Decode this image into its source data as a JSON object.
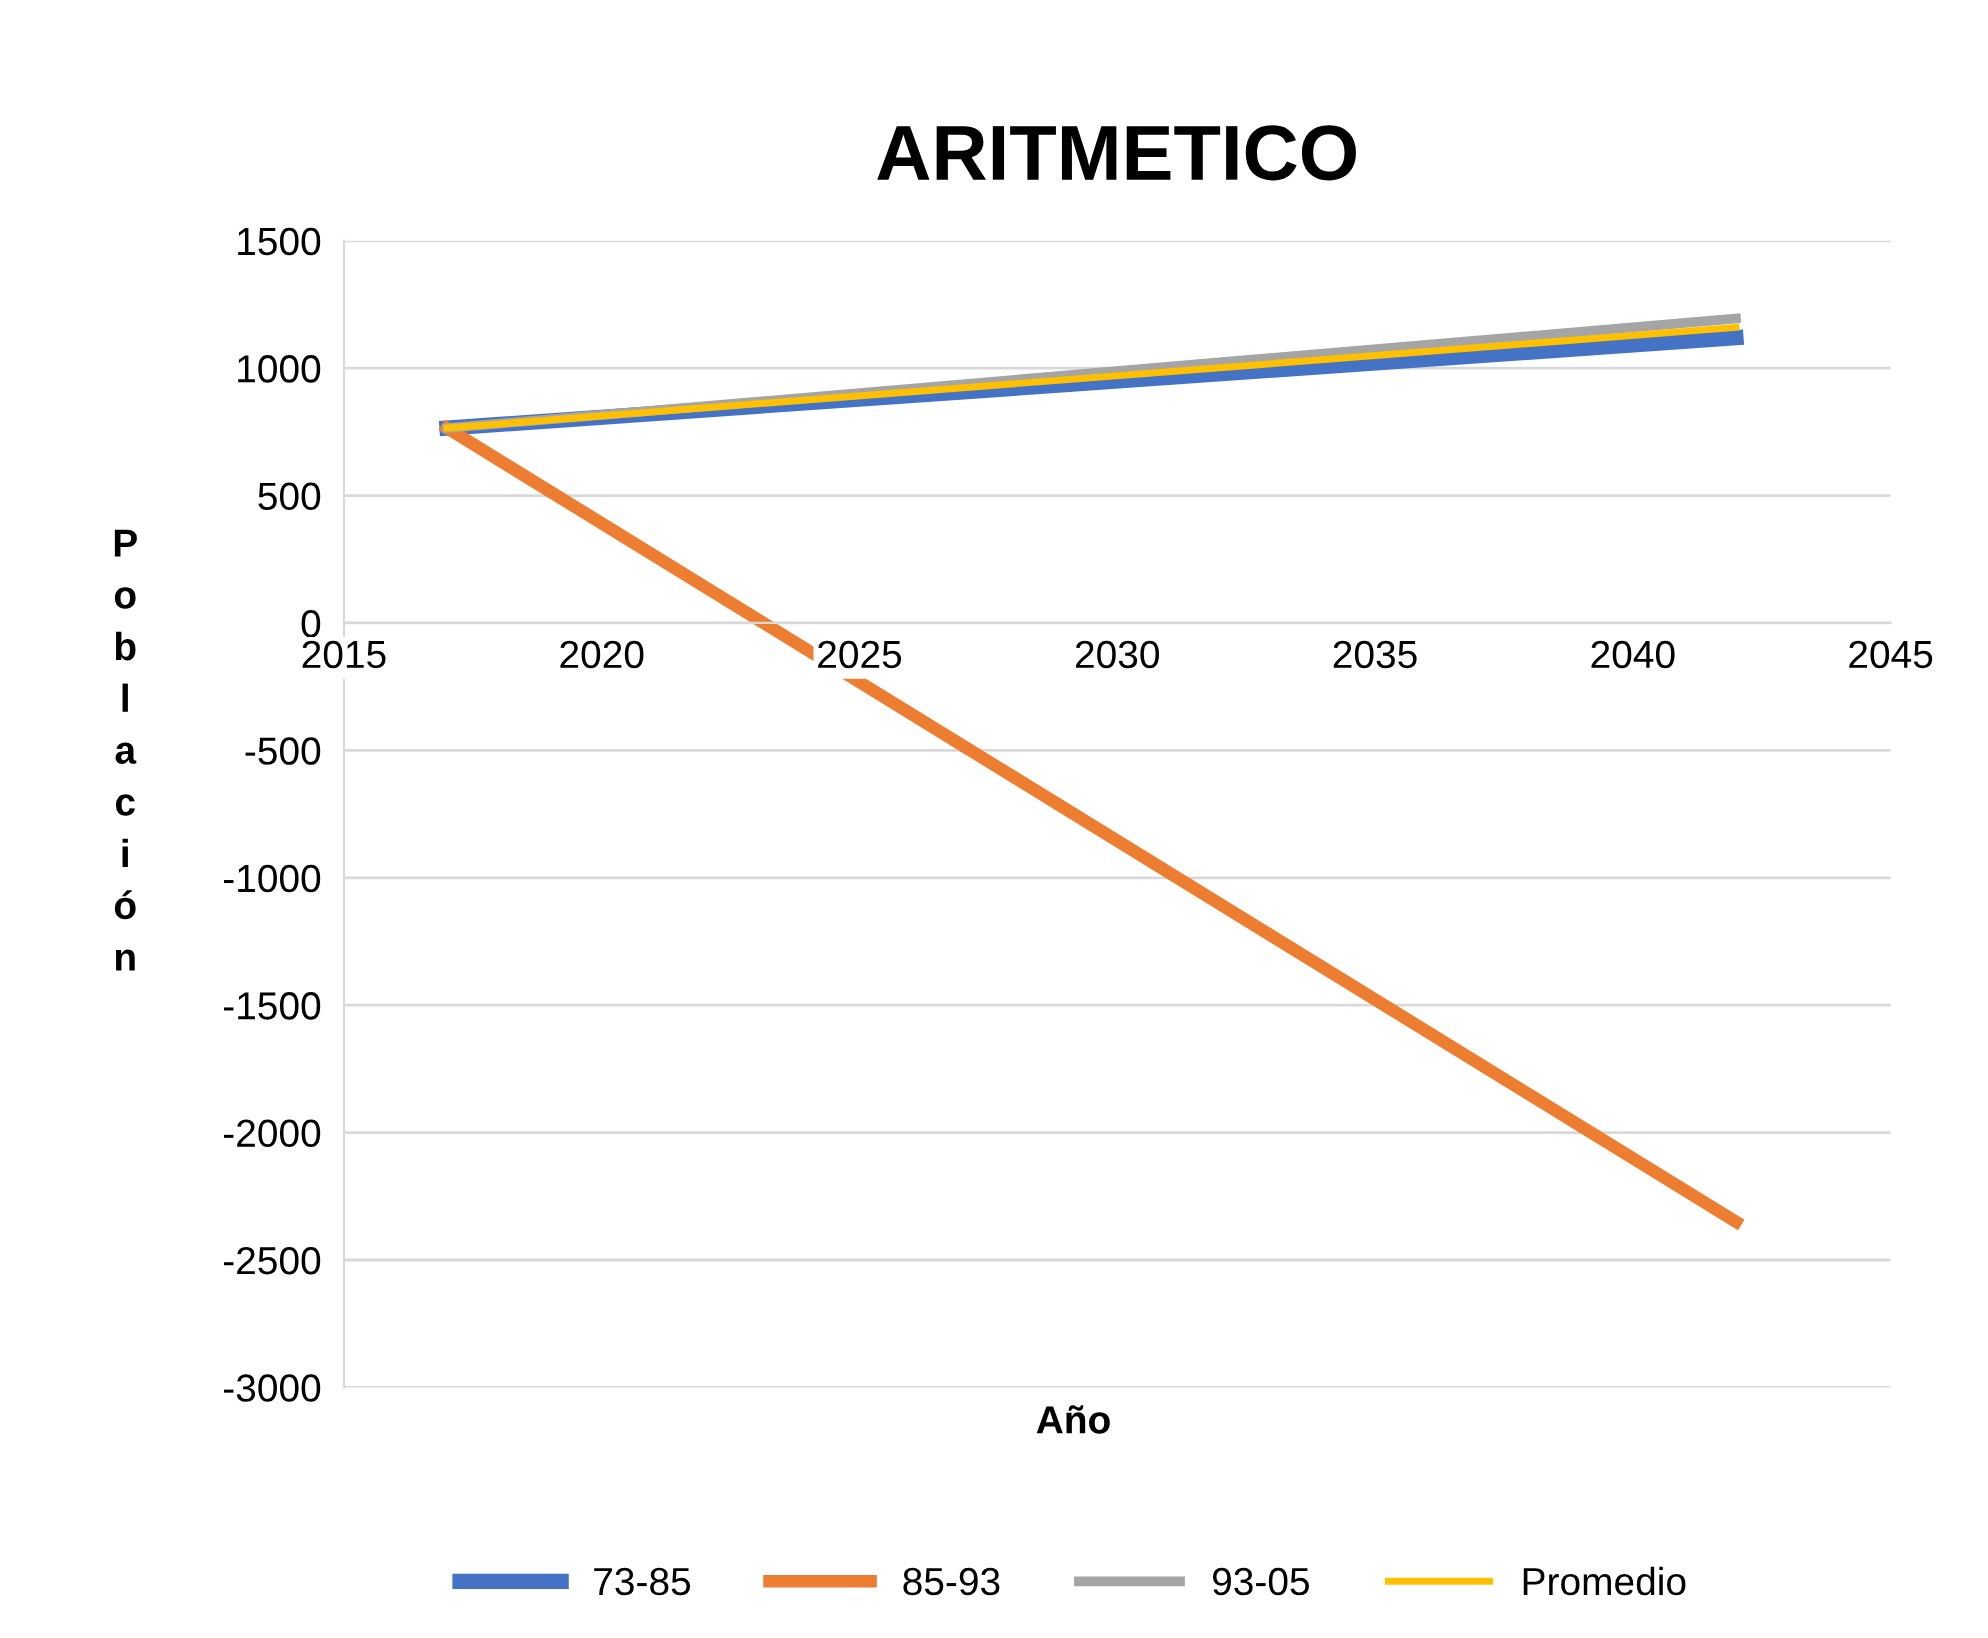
{
  "chart_data": {
    "type": "line",
    "title": "ARITMETICO",
    "xlabel": "Año",
    "ylabel": "Población",
    "x": [
      2017,
      2042
    ],
    "series": [
      {
        "name": "73-85",
        "color": "#4472c4",
        "values": [
          765,
          1120
        ]
      },
      {
        "name": "85-93",
        "color": "#ed7d31",
        "values": [
          765,
          -2350
        ]
      },
      {
        "name": "93-05",
        "color": "#a5a5a5",
        "values": [
          765,
          1195
        ]
      },
      {
        "name": "Promedio",
        "color": "#ffc000",
        "values": [
          765,
          1160
        ]
      }
    ],
    "xlim": [
      2015,
      2045
    ],
    "xticks": [
      2015,
      2020,
      2025,
      2030,
      2035,
      2040,
      2045
    ],
    "ylim": [
      -3000,
      1500
    ],
    "yticks": [
      -3000,
      -2500,
      -2000,
      -1500,
      -1000,
      -500,
      0,
      500,
      1000,
      1500
    ],
    "grid": "y",
    "legend": "bottom",
    "marker": "none",
    "line_style": "solid"
  }
}
